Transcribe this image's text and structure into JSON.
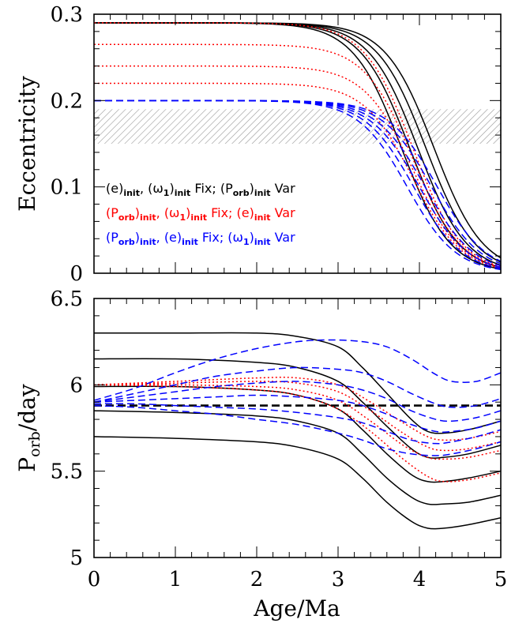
{
  "chart_data": [
    {
      "type": "line",
      "panel": "top",
      "xlabel": "",
      "ylabel": "Eccentricity",
      "xlim": [
        0,
        5
      ],
      "ylim": [
        0,
        0.3
      ],
      "x_ticks": [],
      "y_ticks": [
        "0",
        "0.1",
        "0.2",
        "0.3"
      ],
      "shaded_band": {
        "y": [
          0.15,
          0.19
        ],
        "pattern": "hatched",
        "color": "#999999"
      },
      "legend_position": "lower-left",
      "legend": [
        {
          "color": "#000000",
          "parts": [
            [
              "(e)",
              ""
            ],
            [
              "init",
              "sub"
            ],
            [
              ", (ω",
              ""
            ],
            [
              "1",
              "sub"
            ],
            [
              ")",
              ""
            ],
            [
              "init",
              "sub"
            ],
            [
              " Fix; (P",
              ""
            ],
            [
              "orb",
              "sub"
            ],
            [
              ")",
              ""
            ],
            [
              "init",
              "sub"
            ],
            [
              " Var",
              ""
            ]
          ]
        },
        {
          "color": "#ff0000",
          "parts": [
            [
              "(P",
              ""
            ],
            [
              "orb",
              "sub"
            ],
            [
              ")",
              ""
            ],
            [
              "init",
              "sub"
            ],
            [
              ", (ω",
              ""
            ],
            [
              "1",
              "sub"
            ],
            [
              ")",
              ""
            ],
            [
              "init",
              "sub"
            ],
            [
              " Fix; (e)",
              ""
            ],
            [
              "init",
              "sub"
            ],
            [
              " Var",
              ""
            ]
          ]
        },
        {
          "color": "#0000ff",
          "parts": [
            [
              "(P",
              ""
            ],
            [
              "orb",
              "sub"
            ],
            [
              ")",
              ""
            ],
            [
              "init",
              "sub"
            ],
            [
              ", (e)",
              ""
            ],
            [
              "init",
              "sub"
            ],
            [
              " Fix; (ω",
              ""
            ],
            [
              "1",
              "sub"
            ],
            [
              ")",
              ""
            ],
            [
              "init",
              "sub"
            ],
            [
              " Var",
              ""
            ]
          ]
        }
      ],
      "series": [
        {
          "group": "black",
          "color": "#000000",
          "dash": "solid",
          "params": {
            "e0": 0.29,
            "t_half": 3.78,
            "sigma": 0.3
          }
        },
        {
          "group": "black",
          "color": "#000000",
          "dash": "solid",
          "params": {
            "e0": 0.29,
            "t_half": 3.88,
            "sigma": 0.3
          }
        },
        {
          "group": "black",
          "color": "#000000",
          "dash": "solid",
          "params": {
            "e0": 0.29,
            "t_half": 3.98,
            "sigma": 0.3
          }
        },
        {
          "group": "black",
          "color": "#000000",
          "dash": "solid",
          "params": {
            "e0": 0.29,
            "t_half": 4.08,
            "sigma": 0.3
          }
        },
        {
          "group": "black",
          "color": "#000000",
          "dash": "solid",
          "params": {
            "e0": 0.29,
            "t_half": 4.18,
            "sigma": 0.3
          }
        },
        {
          "group": "red",
          "color": "#ff0000",
          "dash": "dotted",
          "params": {
            "e0": 0.29,
            "t_half": 3.92,
            "sigma": 0.3
          }
        },
        {
          "group": "red",
          "color": "#ff0000",
          "dash": "dotted",
          "params": {
            "e0": 0.265,
            "t_half": 3.92,
            "sigma": 0.3
          }
        },
        {
          "group": "red",
          "color": "#ff0000",
          "dash": "dotted",
          "params": {
            "e0": 0.24,
            "t_half": 3.92,
            "sigma": 0.3
          }
        },
        {
          "group": "red",
          "color": "#ff0000",
          "dash": "dotted",
          "params": {
            "e0": 0.22,
            "t_half": 3.92,
            "sigma": 0.3
          }
        },
        {
          "group": "blue",
          "color": "#0000ff",
          "dash": "dashed",
          "params": {
            "e0": 0.2,
            "t_half": 3.85,
            "sigma": 0.3
          }
        },
        {
          "group": "blue",
          "color": "#0000ff",
          "dash": "dashed",
          "params": {
            "e0": 0.2,
            "t_half": 3.93,
            "sigma": 0.3
          }
        },
        {
          "group": "blue",
          "color": "#0000ff",
          "dash": "dashed",
          "params": {
            "e0": 0.2,
            "t_half": 4.0,
            "sigma": 0.3
          }
        },
        {
          "group": "blue",
          "color": "#0000ff",
          "dash": "dashed",
          "params": {
            "e0": 0.2,
            "t_half": 4.07,
            "sigma": 0.3
          }
        },
        {
          "group": "blue",
          "color": "#0000ff",
          "dash": "dashed",
          "params": {
            "e0": 0.2,
            "t_half": 4.15,
            "sigma": 0.3
          }
        },
        {
          "group": "blue",
          "color": "#0000ff",
          "dash": "dashed",
          "params": {
            "e0": 0.2,
            "t_half": 4.22,
            "sigma": 0.3
          }
        }
      ]
    },
    {
      "type": "line",
      "panel": "bottom",
      "xlabel": "Age/Ma",
      "ylabel": "P_orb/day",
      "ylabel_parts": [
        [
          "P",
          ""
        ],
        [
          "orb",
          "sub"
        ],
        [
          "/day",
          ""
        ]
      ],
      "xlim": [
        0,
        5
      ],
      "ylim": [
        5,
        6.5
      ],
      "x_ticks": [
        "0",
        "1",
        "2",
        "3",
        "4",
        "5"
      ],
      "y_ticks": [
        "5",
        "5.5",
        "6",
        "6.5"
      ],
      "reference_line": {
        "y": 5.88,
        "color": "#000000",
        "dash": "dashed"
      },
      "series": [
        {
          "group": "black",
          "color": "#000000",
          "dash": "solid",
          "x": [
            0,
            1,
            2,
            2.5,
            3,
            3.3,
            3.6,
            3.9,
            4.1,
            4.3,
            4.6,
            5
          ],
          "y": [
            6.3,
            6.3,
            6.3,
            6.28,
            6.22,
            6.1,
            5.95,
            5.8,
            5.73,
            5.72,
            5.74,
            5.79
          ]
        },
        {
          "group": "black",
          "color": "#000000",
          "dash": "solid",
          "x": [
            0,
            1,
            2,
            2.5,
            3,
            3.3,
            3.6,
            3.9,
            4.1,
            4.3,
            4.6,
            5
          ],
          "y": [
            6.15,
            6.15,
            6.13,
            6.1,
            6.02,
            5.9,
            5.76,
            5.63,
            5.58,
            5.58,
            5.6,
            5.65
          ]
        },
        {
          "group": "black",
          "color": "#000000",
          "dash": "solid",
          "x": [
            0,
            1,
            2,
            2.5,
            3,
            3.3,
            3.6,
            3.9,
            4.1,
            4.3,
            4.6,
            5
          ],
          "y": [
            5.99,
            5.99,
            5.97,
            5.94,
            5.86,
            5.74,
            5.6,
            5.48,
            5.44,
            5.44,
            5.46,
            5.5
          ]
        },
        {
          "group": "black",
          "color": "#000000",
          "dash": "solid",
          "x": [
            0,
            1,
            2,
            2.5,
            3,
            3.3,
            3.6,
            3.9,
            4.1,
            4.3,
            4.6,
            5
          ],
          "y": [
            5.85,
            5.84,
            5.82,
            5.79,
            5.72,
            5.6,
            5.46,
            5.35,
            5.31,
            5.31,
            5.32,
            5.36
          ]
        },
        {
          "group": "black",
          "color": "#000000",
          "dash": "solid",
          "x": [
            0,
            1,
            2,
            2.5,
            3,
            3.3,
            3.6,
            3.9,
            4.1,
            4.3,
            4.6,
            5
          ],
          "y": [
            5.7,
            5.69,
            5.67,
            5.64,
            5.57,
            5.46,
            5.32,
            5.21,
            5.17,
            5.17,
            5.19,
            5.23
          ]
        },
        {
          "group": "red",
          "color": "#ff0000",
          "dash": "dotted",
          "x": [
            0,
            1,
            2,
            2.5,
            3,
            3.4,
            3.8,
            4.1,
            4.3,
            4.6,
            5
          ],
          "y": [
            6,
            6.02,
            6.04,
            6.04,
            6.0,
            5.9,
            5.78,
            5.7,
            5.68,
            5.69,
            5.73
          ]
        },
        {
          "group": "red",
          "color": "#ff0000",
          "dash": "dotted",
          "x": [
            0,
            1,
            2,
            2.5,
            3,
            3.4,
            3.8,
            4.1,
            4.3,
            4.6,
            5
          ],
          "y": [
            6,
            6.01,
            6.02,
            6.01,
            5.96,
            5.85,
            5.72,
            5.64,
            5.62,
            5.63,
            5.67
          ]
        },
        {
          "group": "red",
          "color": "#ff0000",
          "dash": "dotted",
          "x": [
            0,
            1,
            2,
            2.5,
            3,
            3.4,
            3.8,
            4.1,
            4.3,
            4.6,
            5
          ],
          "y": [
            6,
            6.0,
            5.99,
            5.97,
            5.91,
            5.79,
            5.65,
            5.58,
            5.57,
            5.58,
            5.62
          ]
        },
        {
          "group": "red",
          "color": "#ff0000",
          "dash": "dotted",
          "x": [
            0,
            1,
            2,
            2.5,
            3,
            3.4,
            3.8,
            4.1,
            4.3,
            4.6,
            5
          ],
          "y": [
            6,
            5.99,
            5.97,
            5.94,
            5.86,
            5.73,
            5.57,
            5.47,
            5.44,
            5.45,
            5.49
          ]
        },
        {
          "group": "blue",
          "color": "#0000ff",
          "dash": "dashed",
          "x": [
            0,
            0.5,
            1,
            1.5,
            2,
            2.5,
            2.9,
            3.3,
            3.6,
            3.9,
            4.2,
            4.4,
            4.7,
            5
          ],
          "y": [
            5.91,
            5.98,
            6.07,
            6.15,
            6.21,
            6.25,
            6.26,
            6.25,
            6.22,
            6.15,
            6.06,
            6.02,
            6.02,
            6.07
          ]
        },
        {
          "group": "blue",
          "color": "#0000ff",
          "dash": "dashed",
          "x": [
            0,
            0.5,
            1,
            1.5,
            2,
            2.5,
            3,
            3.3,
            3.6,
            3.9,
            4.2,
            4.4,
            4.7,
            5
          ],
          "y": [
            5.9,
            5.95,
            6.0,
            6.05,
            6.08,
            6.1,
            6.09,
            6.07,
            6.02,
            5.95,
            5.89,
            5.87,
            5.88,
            5.92
          ]
        },
        {
          "group": "blue",
          "color": "#0000ff",
          "dash": "dashed",
          "x": [
            0,
            0.5,
            1,
            1.5,
            2,
            2.5,
            3,
            3.3,
            3.6,
            3.9,
            4.2,
            4.4,
            4.7,
            5
          ],
          "y": [
            5.9,
            5.93,
            5.96,
            5.99,
            6.01,
            6.02,
            6.0,
            5.97,
            5.92,
            5.85,
            5.8,
            5.79,
            5.81,
            5.85
          ]
        },
        {
          "group": "blue",
          "color": "#0000ff",
          "dash": "dashed",
          "x": [
            0,
            0.5,
            1,
            1.5,
            2,
            2.5,
            3,
            3.3,
            3.6,
            3.9,
            4.2,
            4.4,
            4.7,
            5
          ],
          "y": [
            5.9,
            5.91,
            5.92,
            5.93,
            5.94,
            5.93,
            5.91,
            5.88,
            5.83,
            5.77,
            5.73,
            5.73,
            5.75,
            5.79
          ]
        },
        {
          "group": "blue",
          "color": "#0000ff",
          "dash": "dashed",
          "x": [
            0,
            0.5,
            1,
            1.5,
            2,
            2.5,
            3,
            3.3,
            3.6,
            3.9,
            4.2,
            4.4,
            4.7,
            5
          ],
          "y": [
            5.89,
            5.89,
            5.88,
            5.87,
            5.86,
            5.84,
            5.81,
            5.78,
            5.73,
            5.68,
            5.66,
            5.67,
            5.7,
            5.74
          ]
        },
        {
          "group": "blue",
          "color": "#0000ff",
          "dash": "dashed",
          "x": [
            0,
            0.5,
            1,
            1.5,
            2,
            2.5,
            3,
            3.3,
            3.6,
            3.9,
            4.2,
            4.4,
            4.7,
            5
          ],
          "y": [
            5.88,
            5.87,
            5.85,
            5.83,
            5.8,
            5.77,
            5.72,
            5.68,
            5.63,
            5.6,
            5.59,
            5.6,
            5.63,
            5.67
          ]
        }
      ]
    }
  ]
}
